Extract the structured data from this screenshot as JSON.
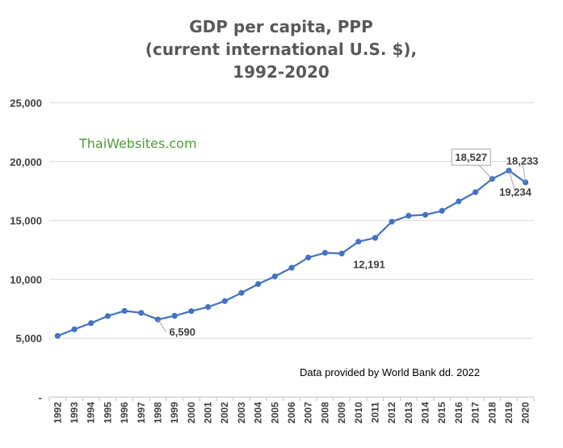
{
  "chart_data": {
    "type": "line",
    "title_lines": [
      "GDP per capita, PPP",
      "(current international U.S. $),",
      "1992-2020"
    ],
    "watermark": "ThaiWebsites.com",
    "source_note": "Data provided by World Bank dd. 2022",
    "xlabel": "",
    "ylabel": "",
    "x": [
      "1992",
      "1993",
      "1994",
      "1995",
      "1996",
      "1997",
      "1998",
      "1999",
      "2000",
      "2001",
      "2002",
      "2003",
      "2004",
      "2005",
      "2006",
      "2007",
      "2008",
      "2009",
      "2010",
      "2011",
      "2012",
      "2013",
      "2014",
      "2015",
      "2016",
      "2017",
      "2018",
      "2019",
      "2020"
    ],
    "series": [
      {
        "values": [
          5200,
          5750,
          6280,
          6880,
          7320,
          7150,
          6590,
          6900,
          7300,
          7650,
          8150,
          8850,
          9600,
          10250,
          10980,
          11850,
          12250,
          12191,
          13200,
          13520,
          14900,
          15400,
          15480,
          15820,
          16620,
          17400,
          18527,
          19234,
          18233
        ],
        "color": "#4472c4"
      }
    ],
    "ylim": [
      0,
      25000
    ],
    "y_ticks": [
      "-",
      "5,000",
      "10,000",
      "15,000",
      "20,000",
      "25,000"
    ],
    "y_tick_values": [
      0,
      5000,
      10000,
      15000,
      20000,
      25000
    ],
    "grid": true,
    "data_labels": [
      {
        "x": "1998",
        "text": "6,590"
      },
      {
        "x": "2009",
        "text": "12,191"
      },
      {
        "x": "2018",
        "text": "18,527"
      },
      {
        "x": "2019",
        "text": "19,234"
      },
      {
        "x": "2020",
        "text": "18,233"
      }
    ]
  }
}
